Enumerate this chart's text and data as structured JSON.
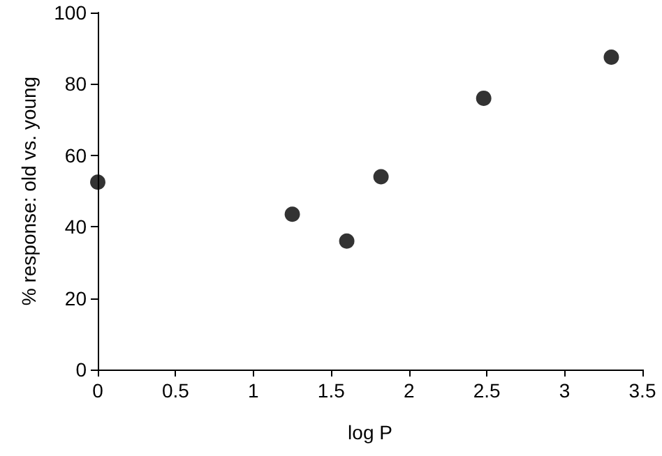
{
  "chart_data": {
    "type": "scatter",
    "xlabel": "log P",
    "ylabel": "% response: old vs. young",
    "x": [
      0,
      1.25,
      1.6,
      1.82,
      2.48,
      3.3
    ],
    "series": [
      {
        "color": "#000000",
        "values": [
          52.5,
          43.5,
          36,
          54,
          76,
          87.5
        ]
      }
    ],
    "xlim": [
      0,
      3.5
    ],
    "xticks": [
      0,
      0.5,
      1,
      1.5,
      2,
      2.5,
      3,
      3.5
    ],
    "ylim": [
      0,
      100
    ],
    "yticks": [
      0,
      20,
      40,
      60,
      80,
      100
    ],
    "grid": false,
    "marker": "circle"
  }
}
